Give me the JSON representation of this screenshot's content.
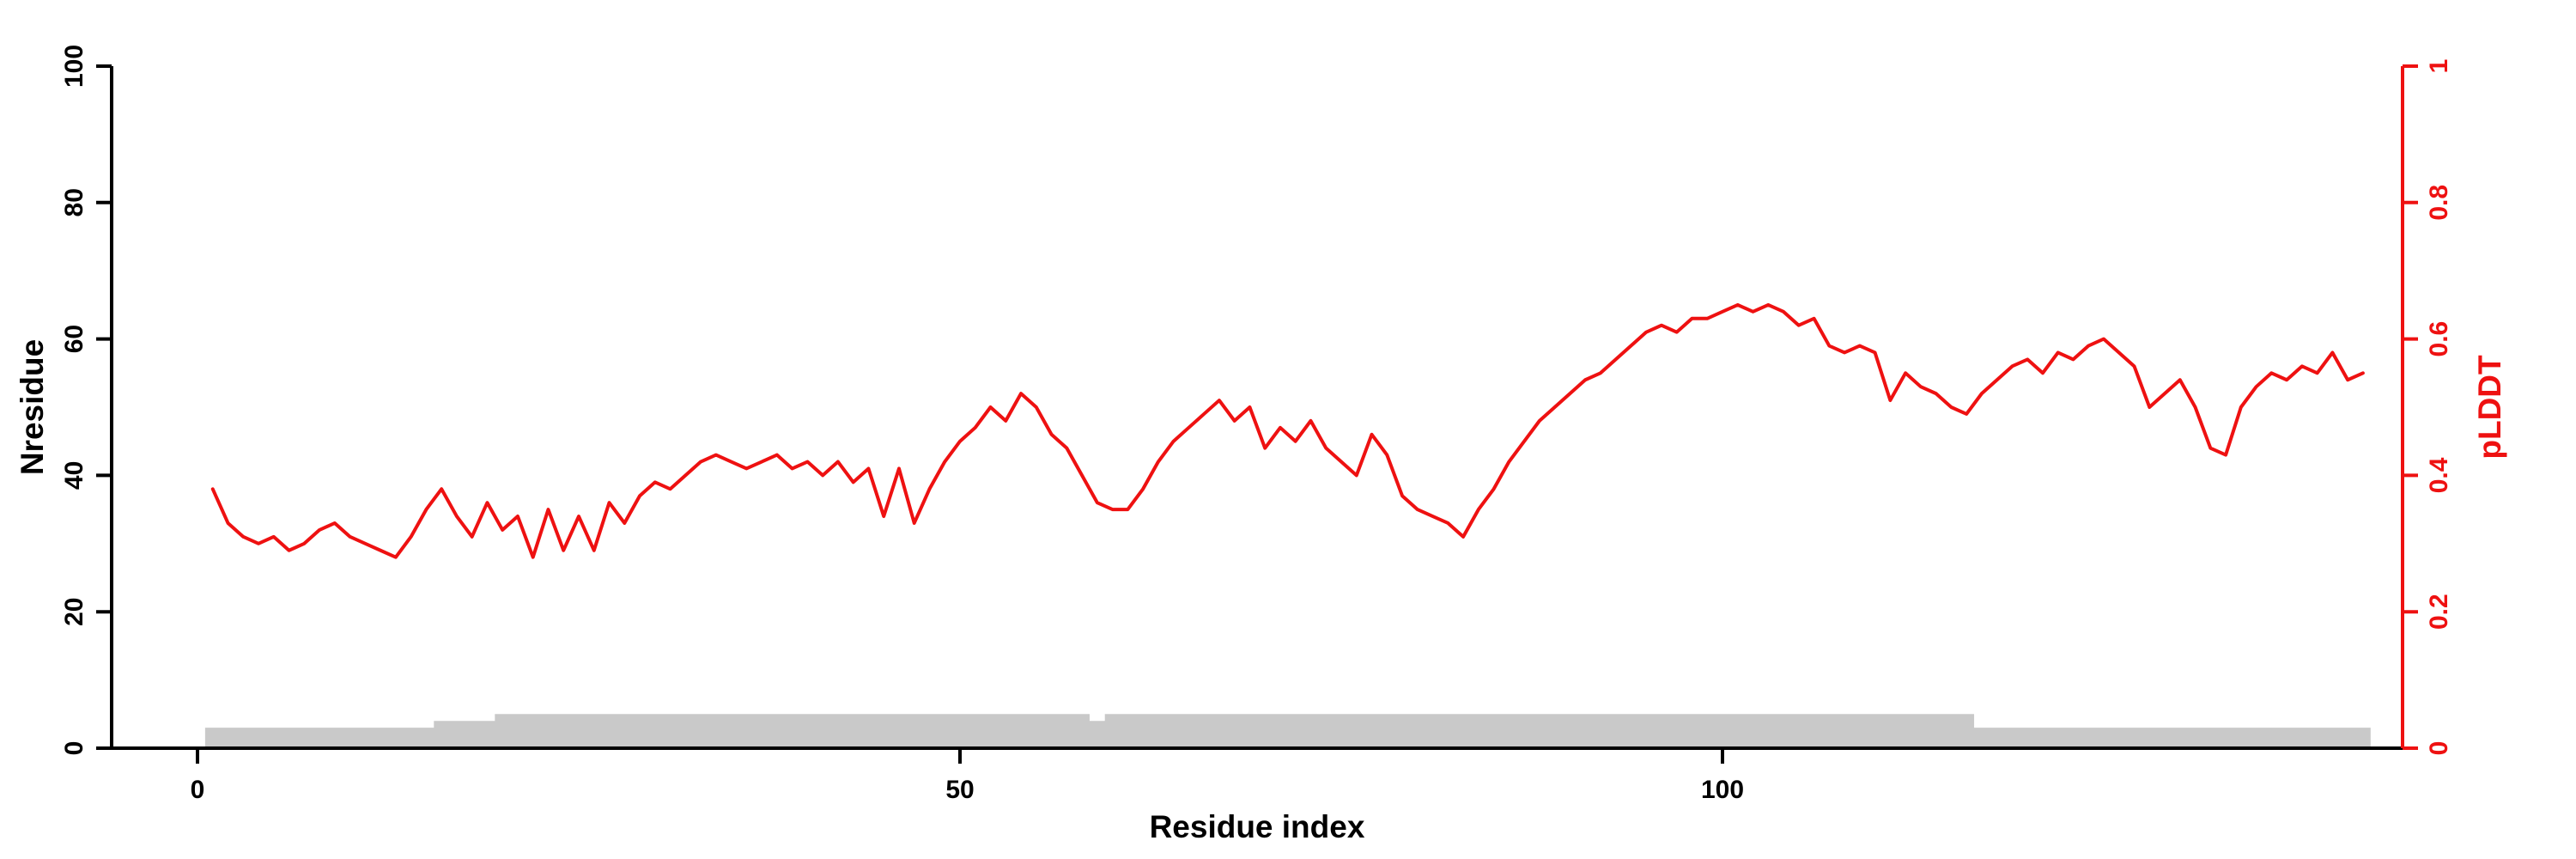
{
  "figure": {
    "xlabel": "Residue index",
    "ylabel_left": "Nresidue",
    "ylabel_right": "pLDDT"
  },
  "colors": {
    "plddt_line": "#ee1111",
    "right_axis": "#ee1111",
    "left_axis": "#000000",
    "nresidue_fill": "#c9c9c9"
  },
  "chart_data": {
    "type": "line",
    "title": "",
    "xlabel": "Residue index",
    "ylabel_left": "Nresidue",
    "ylabel_right": "pLDDT",
    "x_ticks": [
      0,
      50,
      100
    ],
    "y_ticks_left": [
      0,
      20,
      40,
      60,
      80,
      100
    ],
    "y_ticks_right": [
      0,
      0.2,
      0.4,
      0.6,
      0.8,
      1
    ],
    "y_tick_right_labels": [
      "0",
      "0.2",
      "0.4",
      "0.6",
      "0.8",
      "1"
    ],
    "xlim": [
      -6,
      145
    ],
    "ylim_left": [
      0,
      100
    ],
    "ylim_right": [
      0,
      1
    ],
    "grid": false,
    "legend": "none",
    "x_start_residue": 1,
    "series": [
      {
        "name": "pLDDT",
        "type": "line",
        "axis": "right",
        "color": "#ee1111",
        "values": [
          0.38,
          0.33,
          0.31,
          0.3,
          0.31,
          0.29,
          0.3,
          0.32,
          0.33,
          0.31,
          0.3,
          0.29,
          0.28,
          0.31,
          0.35,
          0.38,
          0.34,
          0.31,
          0.36,
          0.32,
          0.34,
          0.28,
          0.35,
          0.29,
          0.34,
          0.29,
          0.36,
          0.33,
          0.37,
          0.39,
          0.38,
          0.4,
          0.42,
          0.43,
          0.42,
          0.41,
          0.42,
          0.43,
          0.41,
          0.42,
          0.4,
          0.42,
          0.39,
          0.41,
          0.34,
          0.41,
          0.33,
          0.38,
          0.42,
          0.45,
          0.47,
          0.5,
          0.48,
          0.52,
          0.5,
          0.46,
          0.44,
          0.4,
          0.36,
          0.35,
          0.35,
          0.38,
          0.42,
          0.45,
          0.47,
          0.49,
          0.51,
          0.48,
          0.5,
          0.44,
          0.47,
          0.45,
          0.48,
          0.44,
          0.42,
          0.4,
          0.46,
          0.43,
          0.37,
          0.35,
          0.34,
          0.33,
          0.31,
          0.35,
          0.38,
          0.42,
          0.45,
          0.48,
          0.5,
          0.52,
          0.54,
          0.55,
          0.57,
          0.59,
          0.61,
          0.62,
          0.61,
          0.63,
          0.63,
          0.64,
          0.65,
          0.64,
          0.65,
          0.64,
          0.62,
          0.63,
          0.59,
          0.58,
          0.59,
          0.58,
          0.51,
          0.55,
          0.53,
          0.52,
          0.5,
          0.49,
          0.52,
          0.54,
          0.56,
          0.57,
          0.55,
          0.58,
          0.57,
          0.59,
          0.6,
          0.58,
          0.56,
          0.5,
          0.52,
          0.54,
          0.5,
          0.44,
          0.43,
          0.5,
          0.53,
          0.55,
          0.54,
          0.56,
          0.55,
          0.58,
          0.54,
          0.55
        ]
      },
      {
        "name": "Nresidue",
        "type": "area",
        "axis": "left",
        "color": "#c9c9c9",
        "values": [
          3,
          3,
          3,
          3,
          3,
          3,
          3,
          3,
          3,
          3,
          3,
          3,
          3,
          3,
          3,
          4,
          4,
          4,
          4,
          5,
          5,
          5,
          5,
          5,
          5,
          5,
          5,
          5,
          5,
          5,
          5,
          5,
          5,
          5,
          5,
          5,
          5,
          5,
          5,
          5,
          5,
          5,
          5,
          5,
          5,
          5,
          5,
          5,
          5,
          5,
          5,
          5,
          5,
          5,
          5,
          5,
          5,
          5,
          4,
          5,
          5,
          5,
          5,
          5,
          5,
          5,
          5,
          5,
          5,
          5,
          5,
          5,
          5,
          5,
          5,
          5,
          5,
          5,
          5,
          5,
          5,
          5,
          5,
          5,
          5,
          5,
          5,
          5,
          5,
          5,
          5,
          5,
          5,
          5,
          5,
          5,
          5,
          5,
          5,
          5,
          5,
          5,
          5,
          5,
          5,
          5,
          5,
          5,
          5,
          5,
          5,
          5,
          5,
          5,
          5,
          5,
          3,
          3,
          3,
          3,
          3,
          3,
          3,
          3,
          3,
          3,
          3,
          3,
          3,
          3,
          3,
          3,
          3,
          3,
          3,
          3,
          3,
          3,
          3,
          3,
          3,
          3
        ]
      }
    ]
  }
}
